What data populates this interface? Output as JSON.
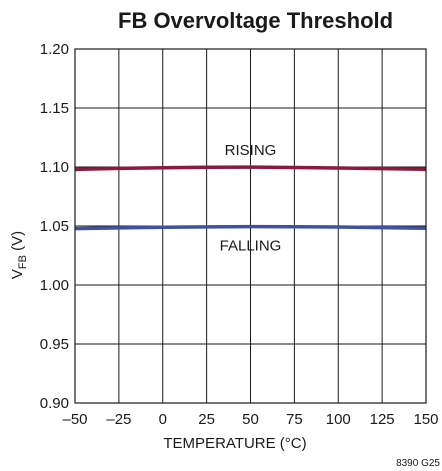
{
  "chart_data": {
    "type": "line",
    "title": "FB Overvoltage Threshold",
    "xlabel": "TEMPERATURE (°C)",
    "ylabel_main": "V",
    "ylabel_sub": "FB",
    "ylabel_unit": " (V)",
    "xlim": [
      -50,
      150
    ],
    "ylim": [
      0.9,
      1.2
    ],
    "x_ticks": [
      -50,
      -25,
      0,
      25,
      50,
      75,
      100,
      125,
      150
    ],
    "x_tick_labels": [
      "–50",
      "–25",
      "0",
      "25",
      "50",
      "75",
      "100",
      "125",
      "150"
    ],
    "y_ticks": [
      0.9,
      0.95,
      1.0,
      1.05,
      1.1,
      1.15,
      1.2
    ],
    "y_tick_labels": [
      "0.90",
      "0.95",
      "1.00",
      "1.05",
      "1.10",
      "1.15",
      "1.20"
    ],
    "grid": true,
    "series": [
      {
        "name": "RISING",
        "color": "#8b1a3c",
        "x": [
          -50,
          -25,
          0,
          25,
          50,
          75,
          100,
          125,
          150
        ],
        "y": [
          1.098,
          1.0988,
          1.0994,
          1.0998,
          1.0999,
          1.0996,
          1.0991,
          1.0986,
          1.0981
        ]
      },
      {
        "name": "FALLING",
        "color": "#3f51a3",
        "x": [
          -50,
          -25,
          0,
          25,
          50,
          75,
          100,
          125,
          150
        ],
        "y": [
          1.0478,
          1.0484,
          1.0489,
          1.0493,
          1.0495,
          1.0494,
          1.0491,
          1.0486,
          1.0481
        ]
      }
    ],
    "footnote": "8390 G25"
  }
}
